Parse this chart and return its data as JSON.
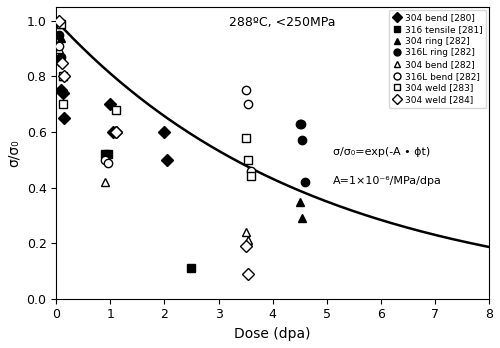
{
  "title_text": "288ºC, <250MPa",
  "xlabel": "Dose (dpa)",
  "ylabel": "σ/σ₀",
  "xlim": [
    0,
    8
  ],
  "ylim": [
    0,
    1.05
  ],
  "xticks": [
    0,
    1,
    2,
    3,
    4,
    5,
    6,
    7,
    8
  ],
  "yticks": [
    0,
    0.2,
    0.4,
    0.6,
    0.8,
    1.0
  ],
  "curve_k": 0.21,
  "series": {
    "304_bend_280": {
      "label": "304 bend [280]",
      "marker": "D",
      "filled": true,
      "x": [
        0.05,
        0.08,
        0.12,
        0.15,
        1.0,
        1.05,
        1.1,
        2.0,
        2.05
      ],
      "y": [
        0.86,
        0.75,
        0.74,
        0.65,
        0.7,
        0.6,
        0.6,
        0.6,
        0.5
      ]
    },
    "316_tensile_281": {
      "label": "316 tensile [281]",
      "marker": "s",
      "filled": true,
      "x": [
        0.05,
        0.9,
        0.95,
        2.5
      ],
      "y": [
        0.99,
        0.52,
        0.52,
        0.11
      ]
    },
    "304_ring_282": {
      "label": "304 ring [282]",
      "marker": "^",
      "filled": true,
      "x": [
        0.08,
        0.12,
        4.5,
        4.55
      ],
      "y": [
        0.94,
        0.8,
        0.35,
        0.29
      ]
    },
    "316L_ring_282": {
      "label": "316L ring [282]",
      "marker": "o",
      "filled": true,
      "x": [
        0.05,
        0.08,
        4.5,
        4.52,
        4.55,
        4.6
      ],
      "y": [
        0.95,
        0.87,
        0.63,
        0.63,
        0.57,
        0.42
      ]
    },
    "304_bend_282": {
      "label": "304 bend [282]",
      "marker": "^",
      "filled": false,
      "x": [
        0.05,
        0.9,
        3.5,
        3.55
      ],
      "y": [
        0.9,
        0.42,
        0.24,
        0.21
      ]
    },
    "316L_bend_282": {
      "label": "316L bend [282]",
      "marker": "o",
      "filled": false,
      "x": [
        0.05,
        0.9,
        0.95,
        3.5,
        3.55,
        3.6
      ],
      "y": [
        0.91,
        0.5,
        0.49,
        0.75,
        0.7,
        0.46
      ]
    },
    "304_weld_283": {
      "label": "304 weld [283]",
      "marker": "s",
      "filled": false,
      "x": [
        0.08,
        0.12,
        0.13,
        1.1,
        3.5,
        3.55,
        3.6
      ],
      "y": [
        0.99,
        0.8,
        0.7,
        0.68,
        0.58,
        0.5,
        0.44
      ]
    },
    "304_weld_284": {
      "label": "304 weld [284]",
      "marker": "D",
      "filled": false,
      "x": [
        0.05,
        0.1,
        0.15,
        1.1,
        3.5,
        3.55
      ],
      "y": [
        1.0,
        0.85,
        0.8,
        0.6,
        0.19,
        0.09
      ]
    }
  },
  "annotation_line1": "σ/σ₀=exp(-A • ϕt)",
  "annotation_line2": "A=1×10⁻⁶/MPa/dpa",
  "background_color": "#ffffff"
}
